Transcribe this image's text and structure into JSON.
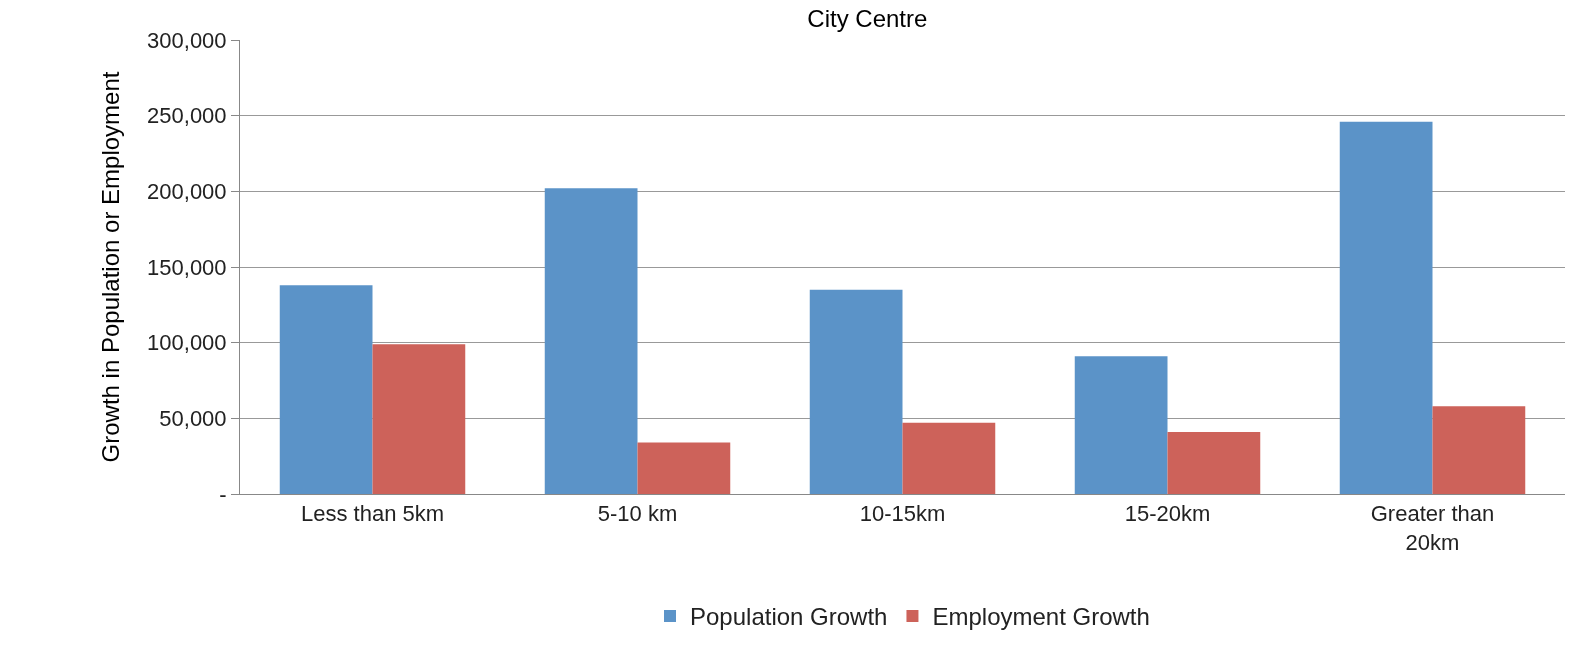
{
  "chart_data": {
    "type": "bar",
    "title": "City Centre",
    "ylabel": "Growth in Population or Employment",
    "categories": [
      "Less than 5km",
      "5-10 km",
      "10-15km",
      "15-20km",
      "Greater than 20km"
    ],
    "series": [
      {
        "name": "Population Growth",
        "color": "#5b93c8",
        "values": [
          138000,
          202000,
          135000,
          91000,
          246000
        ]
      },
      {
        "name": "Employment Growth",
        "color": "#cd625a",
        "values": [
          99000,
          34000,
          47000,
          41000,
          58000
        ]
      }
    ],
    "ylim": [
      0,
      300000
    ],
    "yticks": [
      {
        "value": 0,
        "label": "-"
      },
      {
        "value": 50000,
        "label": "50,000"
      },
      {
        "value": 100000,
        "label": "100,000"
      },
      {
        "value": 150000,
        "label": "150,000"
      },
      {
        "value": 200000,
        "label": "200,000"
      },
      {
        "value": 250000,
        "label": "250,000"
      },
      {
        "value": 300000,
        "label": "300,000"
      }
    ],
    "grid": "y",
    "legend": "bottom"
  }
}
